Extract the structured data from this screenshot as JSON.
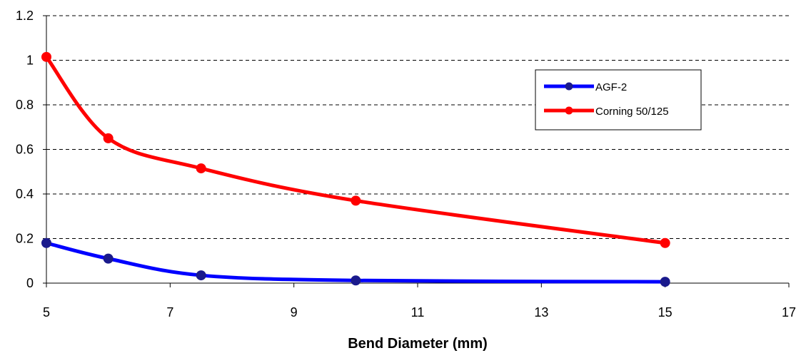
{
  "chart_data": {
    "type": "line",
    "title": "",
    "xlabel": "Bend Diameter (mm)",
    "ylabel": "",
    "xlim": [
      5,
      17
    ],
    "ylim": [
      0,
      1.2
    ],
    "xticks": [
      5,
      7,
      9,
      11,
      13,
      15,
      17
    ],
    "yticks": [
      0,
      0.2,
      0.4,
      0.6,
      0.8,
      1,
      1.2
    ],
    "ytick_labels": [
      "0",
      "0.2",
      "0.4",
      "0.6",
      "0.8",
      "1",
      "1.2"
    ],
    "grid": "horizontal-dashed",
    "legend": "top-right",
    "series": [
      {
        "name": "AGF-2",
        "color": "#0000ff",
        "x": [
          5,
          6,
          7.5,
          10,
          15
        ],
        "y": [
          0.18,
          0.11,
          0.035,
          0.012,
          0.006
        ]
      },
      {
        "name": "Corning 50/125",
        "color": "#ff0000",
        "x": [
          5,
          6,
          7.5,
          10,
          15
        ],
        "y": [
          1.015,
          0.65,
          0.515,
          0.37,
          0.18
        ]
      }
    ]
  }
}
